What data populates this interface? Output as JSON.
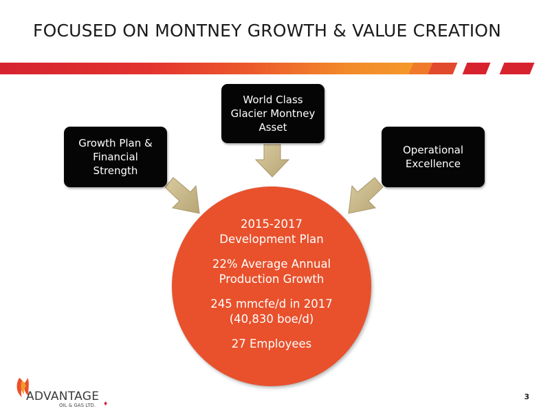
{
  "slide": {
    "title": "FOCUSED ON MONTNEY GROWTH & VALUE CREATION",
    "page_number": "3"
  },
  "boxes": {
    "left": "Growth Plan &\nFinancial\nStrength",
    "top": "World Class\nGlacier Montney\nAsset",
    "right": "Operational\nExcellence"
  },
  "circle": {
    "line1": "2015-2017",
    "line2": "Development Plan",
    "line3": "22% Average Annual",
    "line4": "Production Growth",
    "line5": "245 mmcfe/d in 2017",
    "line6": "(40,830 boe/d)",
    "line7": "27 Employees"
  },
  "logo": {
    "name": "ADVANTAGE",
    "subtitle": "OIL & GAS LTD."
  },
  "colors": {
    "accent_red": "#d6232f",
    "accent_orange": "#e8512c",
    "arrow_tan": "#c9b98a",
    "box_black": "#050505"
  }
}
